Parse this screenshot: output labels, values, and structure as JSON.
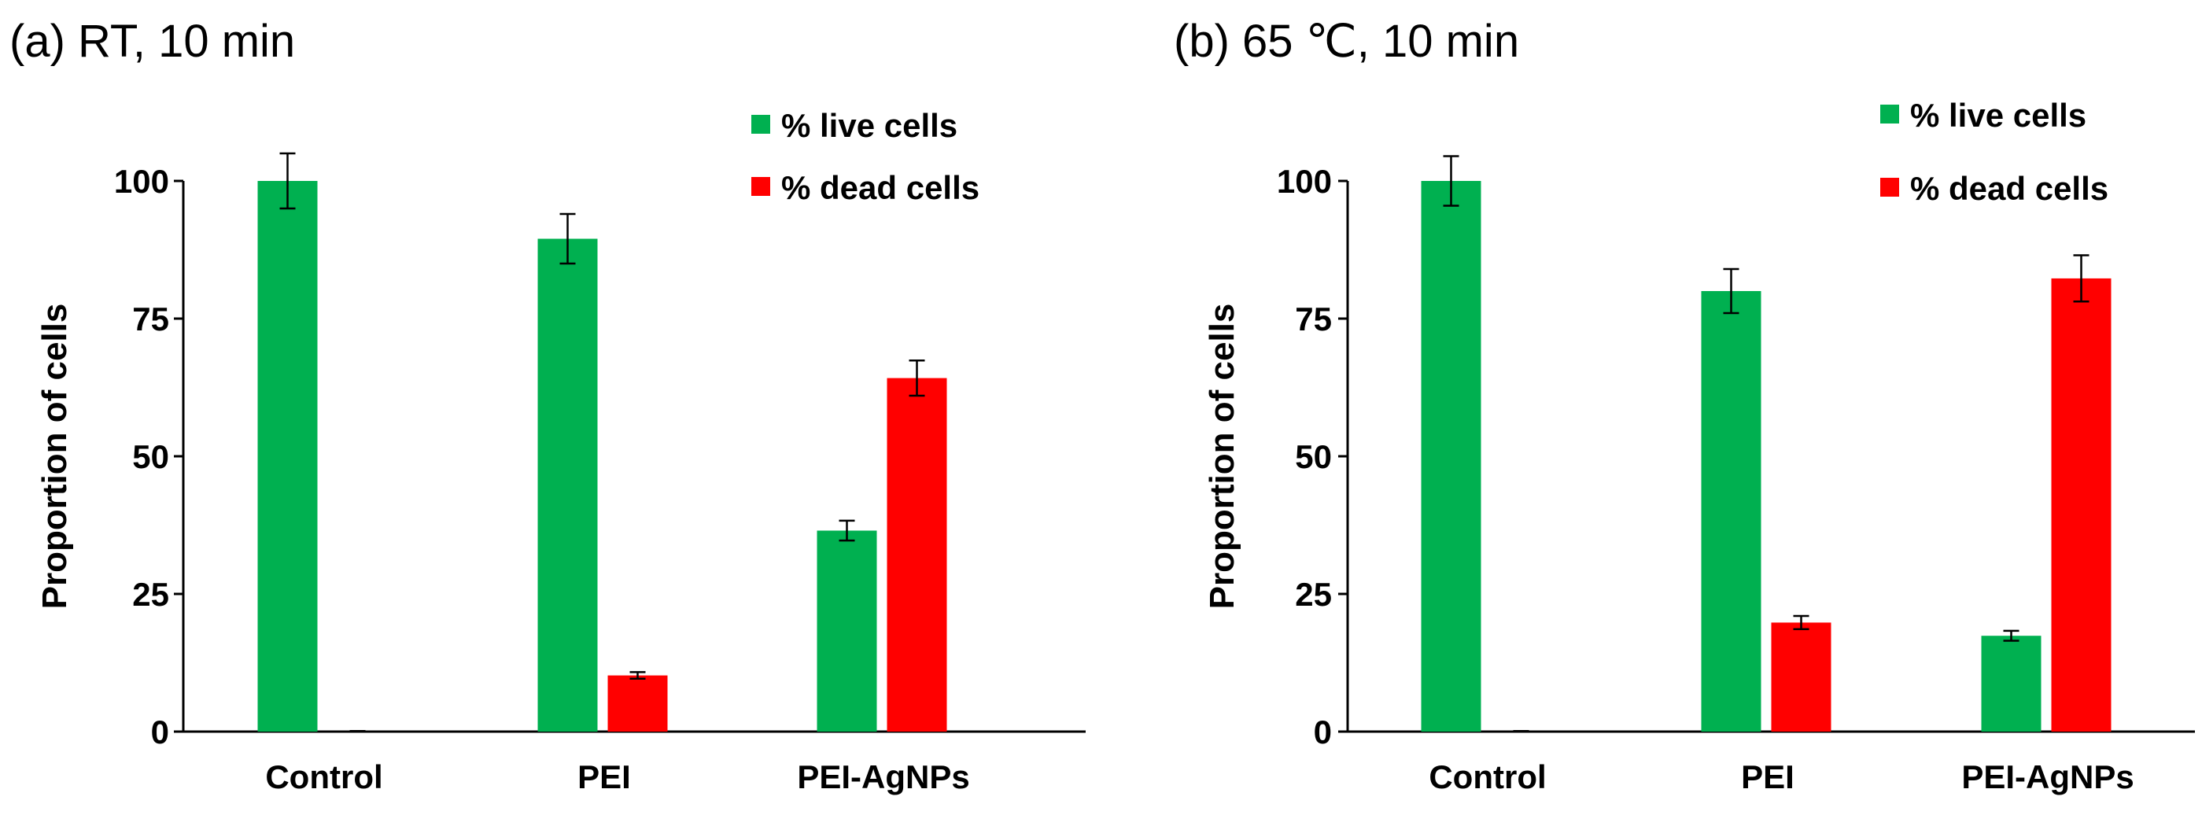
{
  "chart_data": [
    {
      "type": "bar",
      "title": "(a) RT, 10 min",
      "xlabel": "",
      "ylabel": "Proportion of cells",
      "ylim": [
        0,
        100
      ],
      "yticks": [
        0,
        25,
        50,
        75,
        100
      ],
      "categories": [
        "Control",
        "PEI",
        "PEI-AgNPs"
      ],
      "legend_position": "top-right",
      "series": [
        {
          "name": "% live cells",
          "color": "#00b050",
          "values": [
            100,
            89.5,
            36.5
          ],
          "errors": [
            5.0,
            4.5,
            1.8
          ]
        },
        {
          "name": "% dead cells",
          "color": "#ff0000",
          "values": [
            0,
            10.2,
            64.2
          ],
          "errors": [
            0,
            0.6,
            3.2
          ]
        }
      ]
    },
    {
      "type": "bar",
      "title": "(b) 65 ℃, 10 min",
      "xlabel": "",
      "ylabel": "Proportion of cells",
      "ylim": [
        0,
        100
      ],
      "yticks": [
        0,
        25,
        50,
        75,
        100
      ],
      "categories": [
        "Control",
        "PEI",
        "PEI-AgNPs"
      ],
      "legend_position": "top-right",
      "series": [
        {
          "name": "% live cells",
          "color": "#00b050",
          "values": [
            100,
            80.0,
            17.4
          ],
          "errors": [
            4.5,
            4.0,
            0.9
          ]
        },
        {
          "name": "% dead cells",
          "color": "#ff0000",
          "values": [
            0,
            19.8,
            82.3
          ],
          "errors": [
            0,
            1.2,
            4.2
          ]
        }
      ]
    }
  ]
}
